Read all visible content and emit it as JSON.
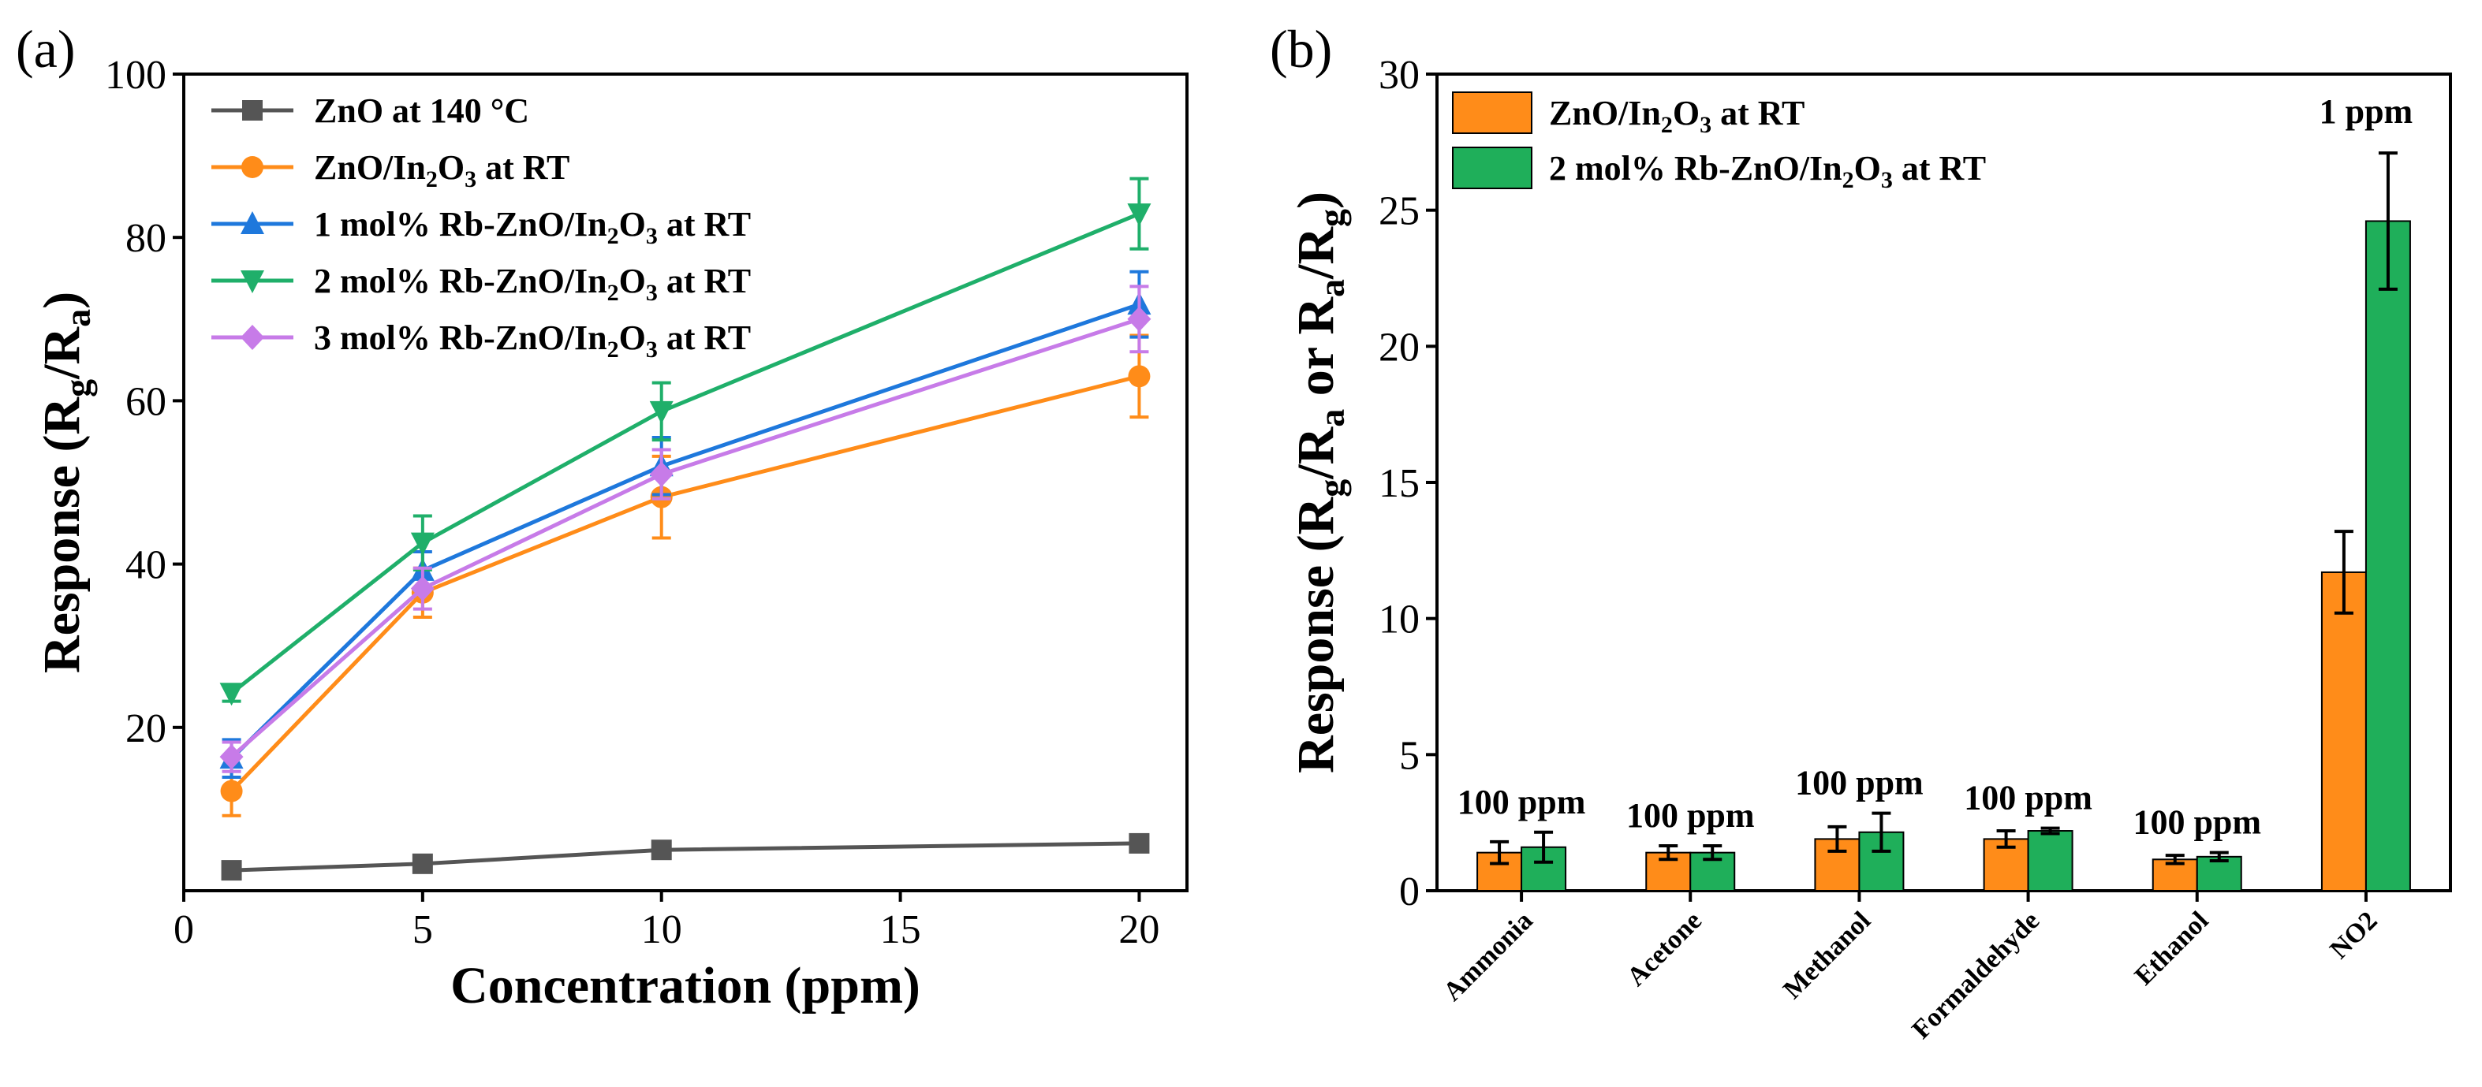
{
  "chart_data": [
    {
      "panel": "(a)",
      "type": "line",
      "xlabel": "Concentration (ppm)",
      "ylabel": "Response (R_g/R_a)",
      "xlim": [
        0,
        21
      ],
      "ylim": [
        0,
        100
      ],
      "xticks": [
        0,
        5,
        10,
        15,
        20
      ],
      "yticks": [
        20,
        40,
        60,
        80,
        100
      ],
      "x": [
        1,
        5,
        10,
        20
      ],
      "legend_position": "top-left",
      "series": [
        {
          "name": "ZnO at 140 °C",
          "name_main": "ZnO at 140 °C",
          "sub": "",
          "name_tail": "",
          "marker": "square",
          "color": "#555555",
          "values": [
            2.5,
            3.3,
            5,
            5.8
          ],
          "errors": [
            0,
            0,
            0,
            0
          ]
        },
        {
          "name": "ZnO/In2O3 at RT",
          "name_main": "ZnO/In",
          "sub": "2",
          "name_tail": "O",
          "sub2": "3",
          "name_end": " at RT",
          "marker": "circle",
          "color": "#FF8C19",
          "values": [
            12.2,
            36.5,
            48.2,
            63
          ],
          "errors": [
            3,
            3,
            5,
            5
          ]
        },
        {
          "name": "1 mol% Rb-ZnO/In2O3 at RT",
          "name_main": "1 mol% Rb-ZnO/In",
          "sub": "2",
          "name_tail": "O",
          "sub2": "3",
          "name_end": " at RT",
          "marker": "triangle-up",
          "color": "#1E78DC",
          "values": [
            16.2,
            39.2,
            52,
            71.8
          ],
          "errors": [
            2.3,
            2.3,
            3.5,
            4
          ]
        },
        {
          "name": "2 mol% Rb-ZnO/In2O3 at RT",
          "name_main": "2 mol% Rb-ZnO/In",
          "sub": "2",
          "name_tail": "O",
          "sub2": "3",
          "name_end": " at RT",
          "marker": "triangle-down",
          "color": "#1FAF6A",
          "values": [
            24.2,
            42.6,
            58.7,
            82.9
          ],
          "errors": [
            1,
            3.3,
            3.5,
            4.3
          ]
        },
        {
          "name": "3 mol% Rb-ZnO/In2O3 at RT",
          "name_main": "3 mol% Rb-ZnO/In",
          "sub": "2",
          "name_tail": "O",
          "sub2": "3",
          "name_end": " at RT",
          "marker": "diamond",
          "color": "#C77BE8",
          "values": [
            16.4,
            37,
            51,
            70
          ],
          "errors": [
            1.8,
            2.5,
            3,
            4
          ]
        }
      ]
    },
    {
      "panel": "(b)",
      "type": "bar",
      "ylabel": "Response (R_g/R_a or R_a/R_g)",
      "ylim": [
        0,
        30
      ],
      "yticks": [
        0,
        5,
        10,
        15,
        20,
        25,
        30
      ],
      "categories": [
        "Ammonia",
        "Acetone",
        "Methanol",
        "Formaldehyde",
        "Ethanol",
        "NO2"
      ],
      "annotations": [
        "100 ppm",
        "100 ppm",
        "100 ppm",
        "100 ppm",
        "100 ppm",
        "1 ppm"
      ],
      "legend_position": "top-left",
      "series": [
        {
          "name": "ZnO/In2O3 at RT",
          "name_main": "ZnO/In",
          "sub": "2",
          "name_tail": "O",
          "sub2": "3",
          "name_end": " at RT",
          "color": "#FF8C19",
          "values": [
            1.4,
            1.4,
            1.9,
            1.9,
            1.15,
            11.7
          ],
          "errors": [
            0.4,
            0.25,
            0.45,
            0.3,
            0.15,
            1.5
          ]
        },
        {
          "name": "2 mol% Rb-ZnO/In2O3 at RT",
          "name_main": "2 mol% Rb-ZnO/In",
          "sub": "2",
          "name_tail": "O",
          "sub2": "3",
          "name_end": " at RT",
          "color": "#1FAF5A",
          "values": [
            1.6,
            1.4,
            2.15,
            2.2,
            1.25,
            24.6
          ],
          "errors": [
            0.55,
            0.25,
            0.7,
            0.1,
            0.15,
            2.5
          ]
        }
      ]
    }
  ]
}
